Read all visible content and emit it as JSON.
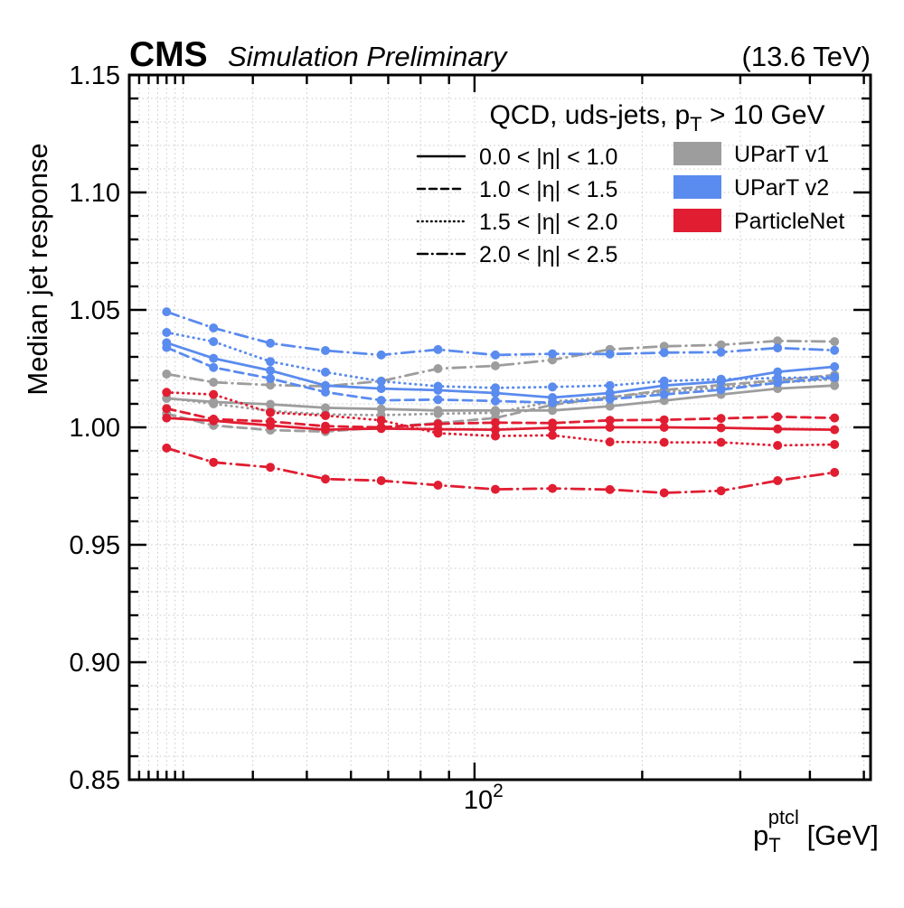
{
  "header": {
    "experiment": "CMS",
    "label": "Simulation Preliminary",
    "energy": "(13.6 TeV)"
  },
  "chart_data": {
    "type": "line",
    "title": "QCD, uds-jets, p_T > 10 GeV",
    "title_parts": {
      "pre": "QCD, uds-jets, p",
      "sub": "T",
      "post": " > 10 GeV"
    },
    "ylabel": "Median jet response",
    "xlabel": "p_T^ptcl [GeV]",
    "xlabel_parts": {
      "base": "p",
      "sub": "T",
      "sup": "ptcl",
      "unit": " [GeV]"
    },
    "x_scale": "log",
    "xlim": [
      24,
      514
    ],
    "ylim": [
      0.85,
      1.15
    ],
    "grid": true,
    "x_major_ticks": [
      100
    ],
    "x_major_tick_label": {
      "mantissa": "10",
      "exponent": "2"
    },
    "x_minor_ticks": [
      25,
      26,
      27,
      28,
      29,
      30,
      40,
      50,
      60,
      70,
      80,
      90,
      200,
      300,
      400,
      500
    ],
    "y_major_ticks": [
      0.85,
      0.9,
      0.95,
      1.0,
      1.05,
      1.1,
      1.15
    ],
    "y_major_tick_labels": [
      "0.85",
      "0.90",
      "0.95",
      "1.00",
      "1.05",
      "1.10",
      "1.15"
    ],
    "y_minor_step": 0.01,
    "x": [
      28,
      34,
      43,
      54,
      68,
      86,
      109,
      138,
      175,
      219,
      277,
      350,
      443
    ],
    "eta_bins": [
      {
        "label": "0.0 < |η| < 1.0",
        "style": "solid"
      },
      {
        "label": "1.0 < |η| < 1.5",
        "style": "dashed"
      },
      {
        "label": "1.5 < |η| < 2.0",
        "style": "dotted"
      },
      {
        "label": "2.0 < |η| < 2.5",
        "style": "dashdot"
      }
    ],
    "models": [
      {
        "name": "UParT v1",
        "color": "#9d9d9d"
      },
      {
        "name": "UParT v2",
        "color": "#5a8bee"
      },
      {
        "name": "ParticleNet",
        "color": "#e11d32"
      }
    ],
    "series": [
      {
        "model": "UParT v1",
        "eta": "0.0 < |η| < 1.0",
        "style": "solid",
        "color": "#9d9d9d",
        "values": [
          1.0123,
          1.0108,
          1.0098,
          1.0083,
          1.0078,
          1.0072,
          1.0072,
          1.0072,
          1.009,
          1.0114,
          1.014,
          1.0165,
          1.0178
        ]
      },
      {
        "model": "UParT v1",
        "eta": "1.0 < |η| < 1.5",
        "style": "dashed",
        "color": "#9d9d9d",
        "values": [
          1.0058,
          1.0008,
          0.9988,
          0.9982,
          1.0,
          1.0018,
          1.004,
          1.0096,
          1.0127,
          1.0159,
          1.018,
          1.02,
          1.0223
        ]
      },
      {
        "model": "UParT v1",
        "eta": "1.5 < |η| < 2.0",
        "style": "dotted",
        "color": "#9d9d9d",
        "values": [
          1.0125,
          1.01,
          1.007,
          1.0055,
          1.0052,
          1.0058,
          1.0062,
          1.011,
          1.013,
          1.015,
          1.017,
          1.019,
          1.0205
        ]
      },
      {
        "model": "UParT v1",
        "eta": "2.0 < |η| < 2.5",
        "style": "dashdot",
        "color": "#9d9d9d",
        "values": [
          1.0227,
          1.0192,
          1.018,
          1.0175,
          1.0197,
          1.025,
          1.0262,
          1.0287,
          1.0332,
          1.0345,
          1.0351,
          1.0368,
          1.0365
        ]
      },
      {
        "model": "UParT v2",
        "eta": "0.0 < |η| < 1.0",
        "style": "solid",
        "color": "#5a8bee",
        "values": [
          1.036,
          1.0294,
          1.0242,
          1.0178,
          1.0165,
          1.0158,
          1.0146,
          1.0127,
          1.0146,
          1.0178,
          1.0195,
          1.0236,
          1.0258
        ]
      },
      {
        "model": "UParT v2",
        "eta": "1.0 < |η| < 1.5",
        "style": "dashed",
        "color": "#5a8bee",
        "values": [
          1.034,
          1.0255,
          1.0208,
          1.015,
          1.0115,
          1.0118,
          1.0112,
          1.0105,
          1.012,
          1.014,
          1.016,
          1.019,
          1.0212
        ]
      },
      {
        "model": "UParT v2",
        "eta": "1.5 < |η| < 2.0",
        "style": "dotted",
        "color": "#5a8bee",
        "values": [
          1.0404,
          1.0365,
          1.028,
          1.0235,
          1.0196,
          1.0175,
          1.0168,
          1.0172,
          1.0178,
          1.0197,
          1.0205,
          1.021,
          1.0215
        ]
      },
      {
        "model": "UParT v2",
        "eta": "2.0 < |η| < 2.5",
        "style": "dashdot",
        "color": "#5a8bee",
        "values": [
          1.0492,
          1.0423,
          1.0358,
          1.0327,
          1.0308,
          1.0331,
          1.0308,
          1.0313,
          1.0312,
          1.0318,
          1.032,
          1.0338,
          1.0328
        ]
      },
      {
        "model": "ParticleNet",
        "eta": "0.0 < |η| < 1.0",
        "style": "solid",
        "color": "#e11d32",
        "values": [
          1.004,
          1.0028,
          1.0008,
          0.999,
          0.9995,
          0.9992,
          0.999,
          0.9998,
          1.0,
          1.0,
          0.9998,
          0.9993,
          0.999
        ]
      },
      {
        "model": "ParticleNet",
        "eta": "1.0 < |η| < 1.5",
        "style": "dashed",
        "color": "#e11d32",
        "values": [
          1.008,
          1.0035,
          1.0025,
          1.0005,
          1.0,
          1.0015,
          1.002,
          1.0018,
          1.003,
          1.0032,
          1.0038,
          1.0045,
          1.004
        ]
      },
      {
        "model": "ParticleNet",
        "eta": "1.5 < |η| < 2.0",
        "style": "dotted",
        "color": "#e11d32",
        "values": [
          1.0149,
          1.014,
          1.0063,
          1.005,
          1.003,
          0.9975,
          0.9963,
          0.9966,
          0.9938,
          0.9936,
          0.9936,
          0.9923,
          0.9927
        ]
      },
      {
        "model": "ParticleNet",
        "eta": "2.0 < |η| < 2.5",
        "style": "dashdot",
        "color": "#e11d32",
        "values": [
          0.9912,
          0.9851,
          0.983,
          0.978,
          0.9773,
          0.9754,
          0.9736,
          0.974,
          0.9735,
          0.9721,
          0.973,
          0.9773,
          0.9808
        ]
      }
    ],
    "legend_position": "top-right-inside",
    "grid_color": "#c9c9c9",
    "frame_color": "#000000"
  }
}
